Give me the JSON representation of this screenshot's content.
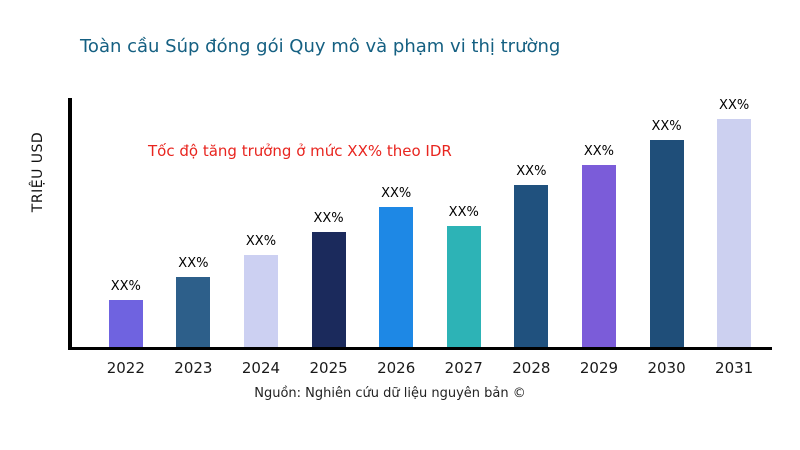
{
  "title": "Toàn cầu Súp đóng gói Quy mô và phạm vi thị trường",
  "ylabel": "TRIỆU USD",
  "annotation_text": "Tốc độ tăng trưởng ở mức XX% theo IDR",
  "source": "Nguồn: Nghiên cứu dữ liệu nguyên bản ©",
  "colors": {
    "title": "#156082",
    "annotation": "#e8251f",
    "axis": "#000000",
    "tick": "#1a1a1a"
  },
  "chart_data": {
    "type": "bar",
    "title": "Toàn cầu Súp đóng gói Quy mô và phạm vi thị trường",
    "xlabel": "",
    "ylabel": "TRIỆU USD",
    "categories": [
      "2022",
      "2023",
      "2024",
      "2025",
      "2026",
      "2027",
      "2028",
      "2029",
      "2030",
      "2031"
    ],
    "values": [
      47,
      70,
      92,
      115,
      140,
      121,
      162,
      182,
      207,
      230
    ],
    "values_note": "relative bar heights in px estimated from pixels; actual numeric values are not shown on chart (labels read XX%)",
    "bar_labels": [
      "XX%",
      "XX%",
      "XX%",
      "XX%",
      "XX%",
      "XX%",
      "XX%",
      "XX%",
      "XX%",
      "XX%"
    ],
    "bar_colors": [
      "#6f63e0",
      "#2d5f8a",
      "#ccd0f2",
      "#1b2a5c",
      "#1e88e5",
      "#2db3b6",
      "#20517e",
      "#7b5cd9",
      "#1f4e79",
      "#ccd0f0"
    ],
    "annotation": {
      "text": "Tốc độ tăng trưởng ở mức XX% theo IDR",
      "color": "#e8251f"
    },
    "grid": false,
    "legend": false,
    "ylim_note": "no y tick labels shown"
  }
}
